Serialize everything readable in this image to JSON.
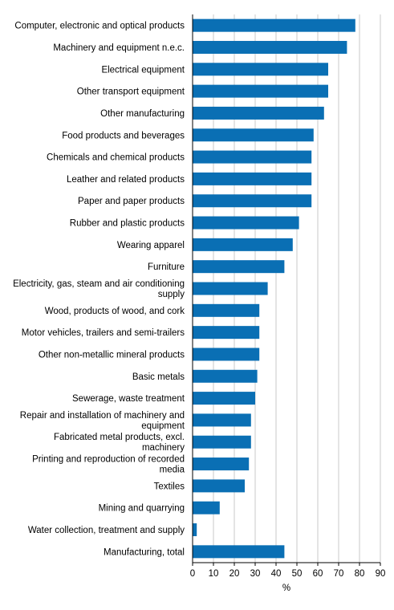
{
  "chart_data": {
    "type": "bar",
    "orientation": "horizontal",
    "categories": [
      "Computer, electronic and optical products",
      "Machinery and equipment n.e.c.",
      "Electrical equipment",
      "Other transport equipment",
      "Other manufacturing",
      "Food products and beverages",
      "Chemicals and chemical products",
      "Leather and related products",
      "Paper and paper products",
      "Rubber and plastic products",
      "Wearing apparel",
      "Furniture",
      [
        "Electricity, gas, steam and air conditioning",
        "supply"
      ],
      "Wood, products of wood, and cork",
      "Motor vehicles, trailers and semi-trailers",
      "Other non-metallic mineral products",
      "Basic metals",
      "Sewerage, waste treatment",
      [
        "Repair and installation of machinery and",
        "equipment"
      ],
      [
        "Fabricated metal products, excl.",
        "machinery"
      ],
      [
        "Printing and reproduction of recorded",
        "media"
      ],
      "Textiles",
      "Mining and quarrying",
      "Water collection, treatment and supply",
      "Manufacturing, total"
    ],
    "values": [
      78,
      74,
      65,
      65,
      63,
      58,
      57,
      57,
      57,
      51,
      48,
      44,
      36,
      32,
      32,
      32,
      31,
      30,
      28,
      28,
      27,
      25,
      13,
      2,
      44
    ],
    "title": "",
    "xlabel": "%",
    "ylabel": "",
    "xlim": [
      0,
      90
    ],
    "xticks": [
      0,
      10,
      20,
      30,
      40,
      50,
      60,
      70,
      80,
      90
    ],
    "grid": "vertical",
    "legend": "none",
    "bar_color": "#0a6fb4",
    "grid_color": "#c8c8c8"
  }
}
